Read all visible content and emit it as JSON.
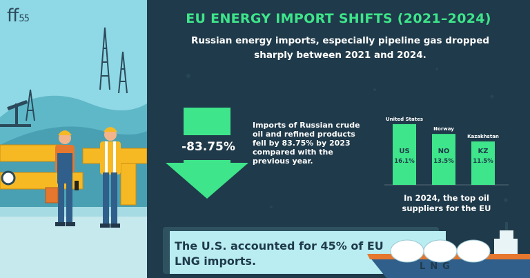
{
  "brand": {
    "logo_main": "ff",
    "logo_sub": "55"
  },
  "header": {
    "title": "EU ENERGY IMPORT SHIFTS (2021–2024)",
    "subtitle": "Russian energy imports, especially pipeline gas dropped sharply between 2021 and 2024."
  },
  "decline": {
    "value_label": "-83.75%",
    "value": -83.75,
    "description": "Imports of Russian crude oil and refined products fell by 83.75% by 2023 compared with the previous year."
  },
  "chart_data": {
    "type": "bar",
    "title": "",
    "categories": [
      "United States",
      "Norway",
      "Kazakhstan"
    ],
    "codes": [
      "US",
      "NO",
      "KZ"
    ],
    "values": [
      16.1,
      13.5,
      11.5
    ],
    "value_labels": [
      "16.1%",
      "13.5%",
      "11.5%"
    ],
    "xlabel": "",
    "ylabel": "",
    "ylim": [
      0,
      17
    ],
    "grid": false,
    "legend": "none",
    "caption": "In 2024, the top oil suppliers for the EU"
  },
  "callout": {
    "text": "The U.S. accounted for 45% of EU LNG imports."
  },
  "ship": {
    "label": "LNG"
  },
  "colors": {
    "accent": "#3ee58a",
    "background": "#1f3a4a",
    "sky": "#8fd8e6",
    "callout": "#b9edf2"
  },
  "icons": [
    "down-arrow-icon",
    "oil-pumpjack-icon",
    "worker-illustration",
    "pipeline-illustration",
    "lng-ship-icon"
  ]
}
